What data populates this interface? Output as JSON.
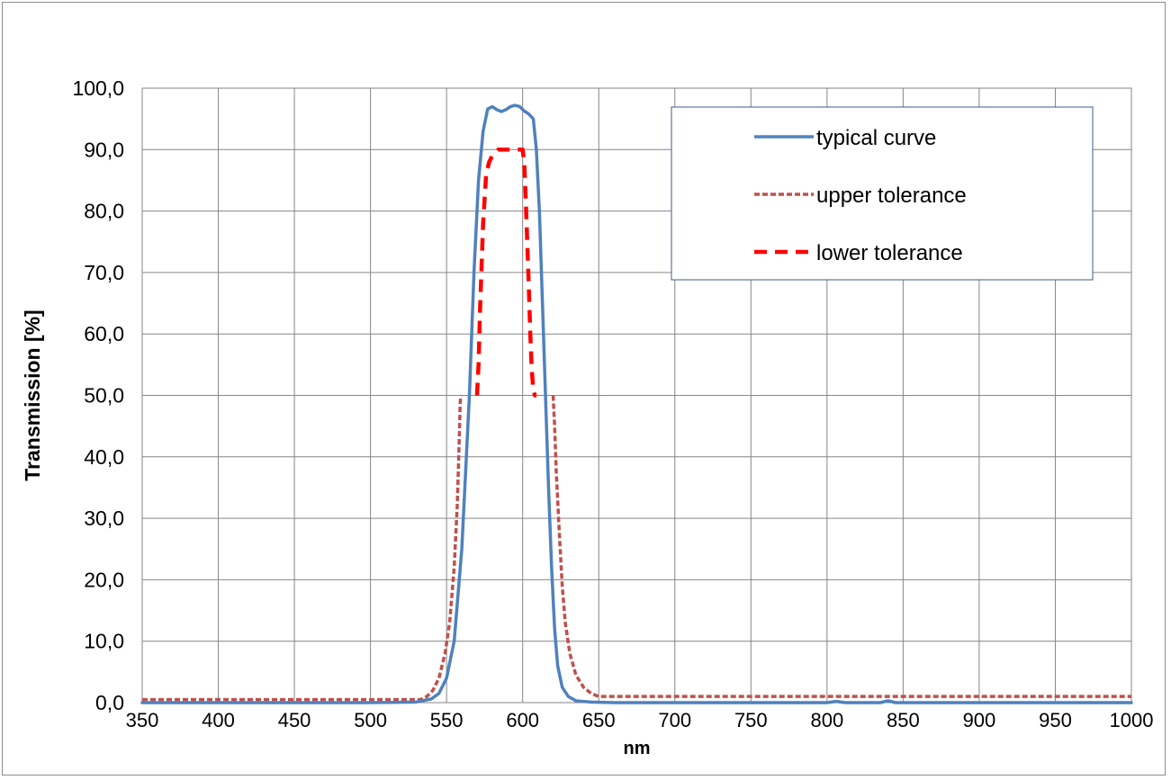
{
  "chart_data": {
    "type": "line",
    "title": "",
    "xlabel": "nm",
    "ylabel": "Transmission [%]",
    "xlim": [
      350,
      1000
    ],
    "ylim": [
      0,
      100
    ],
    "x_ticks": [
      350,
      400,
      450,
      500,
      550,
      600,
      650,
      700,
      750,
      800,
      850,
      900,
      950,
      1000
    ],
    "x_tick_labels": [
      "350",
      "400",
      "450",
      "500",
      "550",
      "600",
      "650",
      "700",
      "750",
      "800",
      "850",
      "900",
      "950",
      "1000"
    ],
    "y_ticks": [
      0,
      10,
      20,
      30,
      40,
      50,
      60,
      70,
      80,
      90,
      100
    ],
    "y_tick_labels": [
      "0,0",
      "10,0",
      "20,0",
      "30,0",
      "40,0",
      "50,0",
      "60,0",
      "70,0",
      "80,0",
      "90,0",
      "100,0"
    ],
    "grid": true,
    "legend_position": "top-right",
    "series": [
      {
        "name": "typical curve",
        "color": "#4f81bd",
        "style": "solid",
        "points": [
          [
            350,
            0.0
          ],
          [
            500,
            0.0
          ],
          [
            530,
            0.1
          ],
          [
            540,
            0.6
          ],
          [
            545,
            1.5
          ],
          [
            550,
            4.0
          ],
          [
            555,
            10.0
          ],
          [
            560,
            25.0
          ],
          [
            565,
            50.0
          ],
          [
            568,
            70.0
          ],
          [
            571,
            85.0
          ],
          [
            574,
            93.0
          ],
          [
            577,
            96.6
          ],
          [
            580,
            97.0
          ],
          [
            583,
            96.5
          ],
          [
            586,
            96.2
          ],
          [
            589,
            96.5
          ],
          [
            592,
            97.0
          ],
          [
            595,
            97.2
          ],
          [
            598,
            97.0
          ],
          [
            601,
            96.3
          ],
          [
            604,
            95.8
          ],
          [
            607,
            95.0
          ],
          [
            609,
            90.0
          ],
          [
            611,
            80.0
          ],
          [
            613,
            65.0
          ],
          [
            615,
            50.0
          ],
          [
            617,
            35.0
          ],
          [
            619,
            22.0
          ],
          [
            621,
            12.0
          ],
          [
            623,
            6.0
          ],
          [
            626,
            2.5
          ],
          [
            630,
            1.0
          ],
          [
            635,
            0.3
          ],
          [
            645,
            0.1
          ],
          [
            660,
            0.0
          ],
          [
            800,
            0.0
          ],
          [
            806,
            0.2
          ],
          [
            812,
            0.0
          ],
          [
            835,
            0.0
          ],
          [
            840,
            0.3
          ],
          [
            845,
            0.0
          ],
          [
            1000,
            0.0
          ]
        ]
      },
      {
        "name": "upper tolerance",
        "color": "#c0504d",
        "style": "dotted",
        "points": [
          [
            350,
            0.5
          ],
          [
            533,
            0.5
          ],
          [
            537,
            1.0
          ],
          [
            541,
            2.0
          ],
          [
            545,
            4.0
          ],
          [
            549,
            8.0
          ],
          [
            552,
            13.0
          ],
          [
            555,
            22.0
          ],
          [
            557,
            32.0
          ],
          [
            558,
            40.0
          ],
          [
            559,
            49.0
          ],
          [
            559.5,
            50.0
          ],
          null,
          [
            620,
            50.0
          ],
          [
            621,
            45.0
          ],
          [
            622,
            38.0
          ],
          [
            624,
            28.0
          ],
          [
            626,
            19.0
          ],
          [
            628,
            13.0
          ],
          [
            631,
            8.0
          ],
          [
            635,
            4.5
          ],
          [
            640,
            2.5
          ],
          [
            645,
            1.5
          ],
          [
            650,
            1.0
          ],
          [
            1000,
            1.0
          ]
        ]
      },
      {
        "name": "lower tolerance",
        "color": "#ff0000",
        "style": "dashed",
        "points": [
          [
            570,
            50.0
          ],
          [
            571,
            55.0
          ],
          [
            572,
            64.0
          ],
          [
            574,
            78.0
          ],
          [
            576,
            86.0
          ],
          [
            578,
            88.0
          ],
          [
            580,
            89.0
          ],
          [
            584,
            90.0
          ],
          [
            600,
            90.0
          ],
          [
            601,
            88.0
          ],
          [
            602,
            82.0
          ],
          [
            603,
            75.0
          ],
          [
            604,
            68.0
          ],
          [
            605,
            60.0
          ],
          [
            606,
            54.0
          ],
          [
            607,
            51.0
          ],
          [
            608,
            50.0
          ],
          [
            609,
            50.0
          ]
        ]
      }
    ]
  }
}
